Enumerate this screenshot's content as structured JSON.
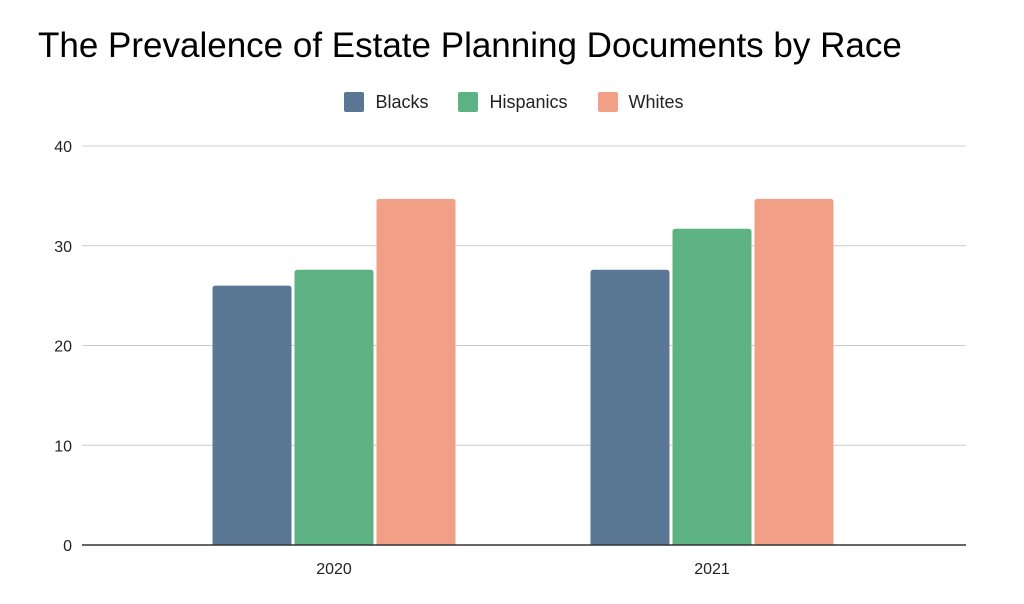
{
  "chart_data": {
    "type": "bar",
    "title": "The Prevalence of Estate Planning Documents by Race",
    "xlabel": "",
    "ylabel": "",
    "categories": [
      "2020",
      "2021"
    ],
    "series": [
      {
        "name": "Blacks",
        "values": [
          26,
          27.6
        ],
        "color": "#5b7796"
      },
      {
        "name": "Hispanics",
        "values": [
          27.6,
          31.7
        ],
        "color": "#5db283"
      },
      {
        "name": "Whites",
        "values": [
          34.7,
          34.7
        ],
        "color": "#f19f86"
      }
    ],
    "ylim": [
      0,
      40
    ],
    "yticks": [
      "0",
      "10",
      "20",
      "30",
      "40"
    ],
    "grid": true,
    "legend_position": "top"
  }
}
